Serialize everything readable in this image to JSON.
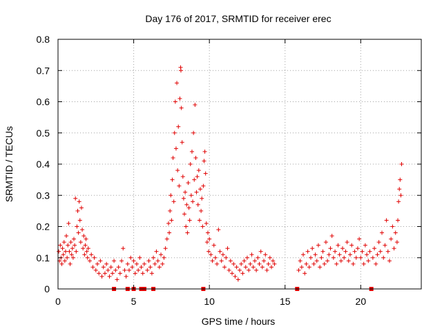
{
  "chart_data": {
    "type": "scatter",
    "title": "Day 176 of 2017, SRMTID for receiver erec",
    "xlabel": "GPS time / hours",
    "ylabel": "SRMTID / TECUs",
    "xlim": [
      0,
      24
    ],
    "ylim": [
      0,
      0.8
    ],
    "x_ticks": [
      0,
      5,
      10,
      15,
      20
    ],
    "x_tick_labels": [
      "0",
      "5",
      "10",
      "15",
      "20"
    ],
    "y_ticks": [
      0,
      0.1,
      0.2,
      0.3,
      0.4,
      0.5,
      0.6,
      0.7,
      0.8
    ],
    "y_tick_labels": [
      "0",
      "0.1",
      "0.2",
      "0.3",
      "0.4",
      "0.5",
      "0.6",
      "0.7",
      "0.8"
    ],
    "grid": true,
    "marker": "+",
    "color": "#e00000",
    "series": [
      {
        "name": "SRMTID",
        "points": [
          [
            0.05,
            0.12
          ],
          [
            0.1,
            0.09
          ],
          [
            0.15,
            0.14
          ],
          [
            0.2,
            0.1
          ],
          [
            0.25,
            0.08
          ],
          [
            0.3,
            0.13
          ],
          [
            0.35,
            0.11
          ],
          [
            0.4,
            0.15
          ],
          [
            0.45,
            0.09
          ],
          [
            0.5,
            0.12
          ],
          [
            0.55,
            0.17
          ],
          [
            0.6,
            0.1
          ],
          [
            0.65,
            0.14
          ],
          [
            0.7,
            0.21
          ],
          [
            0.75,
            0.12
          ],
          [
            0.8,
            0.08
          ],
          [
            0.85,
            0.15
          ],
          [
            0.9,
            0.11
          ],
          [
            0.95,
            0.13
          ],
          [
            1.0,
            0.1
          ],
          [
            1.05,
            0.16
          ],
          [
            1.1,
            0.14
          ],
          [
            1.15,
            0.29
          ],
          [
            1.2,
            0.12
          ],
          [
            1.25,
            0.2
          ],
          [
            1.3,
            0.25
          ],
          [
            1.35,
            0.18
          ],
          [
            1.4,
            0.28
          ],
          [
            1.45,
            0.22
          ],
          [
            1.5,
            0.15
          ],
          [
            1.55,
            0.26
          ],
          [
            1.6,
            0.19
          ],
          [
            1.65,
            0.13
          ],
          [
            1.7,
            0.17
          ],
          [
            1.75,
            0.11
          ],
          [
            1.8,
            0.14
          ],
          [
            1.85,
            0.16
          ],
          [
            1.9,
            0.12
          ],
          [
            1.95,
            0.1
          ],
          [
            2.0,
            0.13
          ],
          [
            2.1,
            0.09
          ],
          [
            2.2,
            0.11
          ],
          [
            2.3,
            0.07
          ],
          [
            2.4,
            0.1
          ],
          [
            2.5,
            0.06
          ],
          [
            2.6,
            0.08
          ],
          [
            2.7,
            0.05
          ],
          [
            2.8,
            0.09
          ],
          [
            2.9,
            0.04
          ],
          [
            3.0,
            0.07
          ],
          [
            3.1,
            0.05
          ],
          [
            3.2,
            0.08
          ],
          [
            3.3,
            0.06
          ],
          [
            3.4,
            0.04
          ],
          [
            3.5,
            0.07
          ],
          [
            3.6,
            0.05
          ],
          [
            3.7,
            0.09
          ],
          [
            3.8,
            0.06
          ],
          [
            3.9,
            0.03
          ],
          [
            4.0,
            0.07
          ],
          [
            4.1,
            0.05
          ],
          [
            4.2,
            0.09
          ],
          [
            4.3,
            0.13
          ],
          [
            4.4,
            0.06
          ],
          [
            4.5,
            0.04
          ],
          [
            4.6,
            0.08
          ],
          [
            4.7,
            0.06
          ],
          [
            4.8,
            0.1
          ],
          [
            4.9,
            0.07
          ],
          [
            5.0,
            0.09
          ],
          [
            5.1,
            0.05
          ],
          [
            5.2,
            0.08
          ],
          [
            5.3,
            0.06
          ],
          [
            5.4,
            0.1
          ],
          [
            5.5,
            0.07
          ],
          [
            5.6,
            0.05
          ],
          [
            5.7,
            0.08
          ],
          [
            5.9,
            0.06
          ],
          [
            6.0,
            0.09
          ],
          [
            6.1,
            0.07
          ],
          [
            6.2,
            0.05
          ],
          [
            6.3,
            0.1
          ],
          [
            6.4,
            0.08
          ],
          [
            6.5,
            0.12
          ],
          [
            6.6,
            0.09
          ],
          [
            6.7,
            0.07
          ],
          [
            6.8,
            0.11
          ],
          [
            6.9,
            0.08
          ],
          [
            7.0,
            0.1
          ],
          [
            7.1,
            0.13
          ],
          [
            7.2,
            0.16
          ],
          [
            7.3,
            0.21
          ],
          [
            7.35,
            0.18
          ],
          [
            7.4,
            0.25
          ],
          [
            7.45,
            0.3
          ],
          [
            7.5,
            0.22
          ],
          [
            7.55,
            0.35
          ],
          [
            7.6,
            0.42
          ],
          [
            7.65,
            0.28
          ],
          [
            7.7,
            0.5
          ],
          [
            7.75,
            0.6
          ],
          [
            7.8,
            0.45
          ],
          [
            7.85,
            0.66
          ],
          [
            7.9,
            0.38
          ],
          [
            7.95,
            0.52
          ],
          [
            8.0,
            0.33
          ],
          [
            8.05,
            0.61
          ],
          [
            8.1,
            0.71
          ],
          [
            8.12,
            0.7
          ],
          [
            8.15,
            0.58
          ],
          [
            8.2,
            0.47
          ],
          [
            8.25,
            0.36
          ],
          [
            8.3,
            0.29
          ],
          [
            8.35,
            0.24
          ],
          [
            8.4,
            0.31
          ],
          [
            8.45,
            0.2
          ],
          [
            8.5,
            0.27
          ],
          [
            8.55,
            0.18
          ],
          [
            8.6,
            0.34
          ],
          [
            8.65,
            0.26
          ],
          [
            8.7,
            0.22
          ],
          [
            8.75,
            0.4
          ],
          [
            8.8,
            0.3
          ],
          [
            8.85,
            0.44
          ],
          [
            8.9,
            0.28
          ],
          [
            8.95,
            0.5
          ],
          [
            9.0,
            0.35
          ],
          [
            9.05,
            0.59
          ],
          [
            9.1,
            0.42
          ],
          [
            9.15,
            0.31
          ],
          [
            9.2,
            0.36
          ],
          [
            9.25,
            0.27
          ],
          [
            9.3,
            0.38
          ],
          [
            9.35,
            0.22
          ],
          [
            9.4,
            0.32
          ],
          [
            9.45,
            0.25
          ],
          [
            9.5,
            0.29
          ],
          [
            9.55,
            0.2
          ],
          [
            9.6,
            0.33
          ],
          [
            9.65,
            0.41
          ],
          [
            9.7,
            0.44
          ],
          [
            9.75,
            0.37
          ],
          [
            9.8,
            0.21
          ],
          [
            9.85,
            0.15
          ],
          [
            9.9,
            0.18
          ],
          [
            9.95,
            0.12
          ],
          [
            10.0,
            0.16
          ],
          [
            10.1,
            0.11
          ],
          [
            10.2,
            0.09
          ],
          [
            10.3,
            0.14
          ],
          [
            10.4,
            0.1
          ],
          [
            10.5,
            0.08
          ],
          [
            10.6,
            0.19
          ],
          [
            10.7,
            0.12
          ],
          [
            10.8,
            0.09
          ],
          [
            10.9,
            0.11
          ],
          [
            11.0,
            0.07
          ],
          [
            11.1,
            0.1
          ],
          [
            11.2,
            0.13
          ],
          [
            11.3,
            0.06
          ],
          [
            11.4,
            0.09
          ],
          [
            11.5,
            0.05
          ],
          [
            11.6,
            0.08
          ],
          [
            11.7,
            0.04
          ],
          [
            11.8,
            0.07
          ],
          [
            11.9,
            0.03
          ],
          [
            12.0,
            0.06
          ],
          [
            12.1,
            0.08
          ],
          [
            12.2,
            0.05
          ],
          [
            12.3,
            0.09
          ],
          [
            12.4,
            0.07
          ],
          [
            12.5,
            0.1
          ],
          [
            12.6,
            0.06
          ],
          [
            12.7,
            0.08
          ],
          [
            12.8,
            0.11
          ],
          [
            12.9,
            0.07
          ],
          [
            13.0,
            0.09
          ],
          [
            13.1,
            0.06
          ],
          [
            13.2,
            0.1
          ],
          [
            13.3,
            0.08
          ],
          [
            13.4,
            0.12
          ],
          [
            13.5,
            0.07
          ],
          [
            13.6,
            0.09
          ],
          [
            13.7,
            0.11
          ],
          [
            13.8,
            0.06
          ],
          [
            13.9,
            0.08
          ],
          [
            14.0,
            0.1
          ],
          [
            14.1,
            0.07
          ],
          [
            14.2,
            0.09
          ],
          [
            14.3,
            0.08
          ],
          [
            15.9,
            0.06
          ],
          [
            16.0,
            0.09
          ],
          [
            16.1,
            0.07
          ],
          [
            16.2,
            0.11
          ],
          [
            16.3,
            0.05
          ],
          [
            16.4,
            0.08
          ],
          [
            16.5,
            0.12
          ],
          [
            16.6,
            0.07
          ],
          [
            16.7,
            0.1
          ],
          [
            16.8,
            0.13
          ],
          [
            16.9,
            0.08
          ],
          [
            17.0,
            0.11
          ],
          [
            17.1,
            0.09
          ],
          [
            17.2,
            0.14
          ],
          [
            17.3,
            0.07
          ],
          [
            17.4,
            0.1
          ],
          [
            17.5,
            0.12
          ],
          [
            17.6,
            0.08
          ],
          [
            17.7,
            0.15
          ],
          [
            17.8,
            0.09
          ],
          [
            17.9,
            0.11
          ],
          [
            18.0,
            0.13
          ],
          [
            18.1,
            0.17
          ],
          [
            18.2,
            0.1
          ],
          [
            18.3,
            0.12
          ],
          [
            18.4,
            0.08
          ],
          [
            18.5,
            0.14
          ],
          [
            18.6,
            0.11
          ],
          [
            18.7,
            0.09
          ],
          [
            18.8,
            0.13
          ],
          [
            18.9,
            0.1
          ],
          [
            19.0,
            0.12
          ],
          [
            19.1,
            0.15
          ],
          [
            19.2,
            0.09
          ],
          [
            19.3,
            0.11
          ],
          [
            19.4,
            0.14
          ],
          [
            19.5,
            0.08
          ],
          [
            19.6,
            0.12
          ],
          [
            19.7,
            0.1
          ],
          [
            19.8,
            0.13
          ],
          [
            19.9,
            0.16
          ],
          [
            20.0,
            0.1
          ],
          [
            20.1,
            0.12
          ],
          [
            20.2,
            0.08
          ],
          [
            20.3,
            0.14
          ],
          [
            20.4,
            0.11
          ],
          [
            20.5,
            0.09
          ],
          [
            20.6,
            0.12
          ],
          [
            20.8,
            0.1
          ],
          [
            20.9,
            0.13
          ],
          [
            21.0,
            0.08
          ],
          [
            21.1,
            0.11
          ],
          [
            21.2,
            0.15
          ],
          [
            21.3,
            0.12
          ],
          [
            21.4,
            0.18
          ],
          [
            21.5,
            0.1
          ],
          [
            21.6,
            0.14
          ],
          [
            21.7,
            0.22
          ],
          [
            21.8,
            0.12
          ],
          [
            21.9,
            0.09
          ],
          [
            22.0,
            0.16
          ],
          [
            22.1,
            0.2
          ],
          [
            22.2,
            0.13
          ],
          [
            22.3,
            0.18
          ],
          [
            22.4,
            0.15
          ],
          [
            22.45,
            0.22
          ],
          [
            22.5,
            0.28
          ],
          [
            22.55,
            0.32
          ],
          [
            22.6,
            0.35
          ],
          [
            22.65,
            0.3
          ],
          [
            22.7,
            0.4
          ]
        ]
      }
    ],
    "gap_markers_x": [
      3.7,
      4.6,
      5.0,
      5.5,
      5.7,
      6.3,
      9.6,
      15.8,
      20.7
    ]
  }
}
